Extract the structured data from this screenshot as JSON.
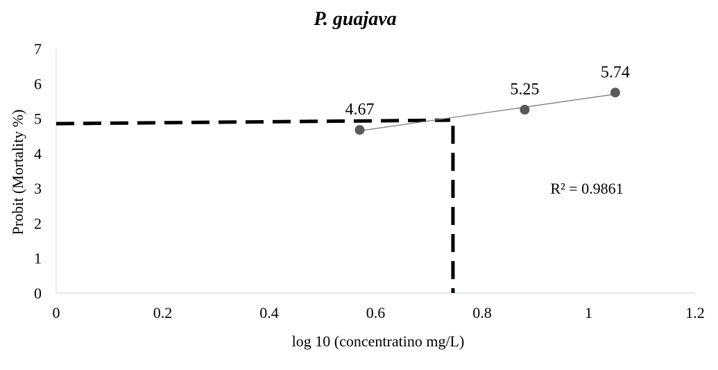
{
  "chart_data": {
    "type": "scatter",
    "title": "P. guajava",
    "xlabel": "log 10 (concentratino mg/L)",
    "ylabel": "Probit (Mortality %)",
    "xlim": [
      0,
      1.2
    ],
    "ylim": [
      0,
      7
    ],
    "x_ticks": [
      "0",
      "0.2",
      "0.4",
      "0.6",
      "0.8",
      "1",
      "1.2"
    ],
    "y_ticks": [
      "0",
      "1",
      "2",
      "3",
      "4",
      "5",
      "6",
      "7"
    ],
    "grid": false,
    "series": [
      {
        "points": [
          {
            "x": 0.57,
            "y": 4.67,
            "label": "4.67"
          },
          {
            "x": 0.88,
            "y": 5.25,
            "label": "5.25"
          },
          {
            "x": 1.05,
            "y": 5.74,
            "label": "5.74"
          }
        ],
        "color": "#595959"
      }
    ],
    "trendline": {
      "type": "linear",
      "r2_text": "R² = 0.9861",
      "x_range": [
        0.57,
        1.05
      ],
      "color": "#7f7f7f"
    },
    "reference_lines": {
      "x": 0.74,
      "y": 4.95,
      "color": "#000000",
      "style": "dashed"
    }
  }
}
